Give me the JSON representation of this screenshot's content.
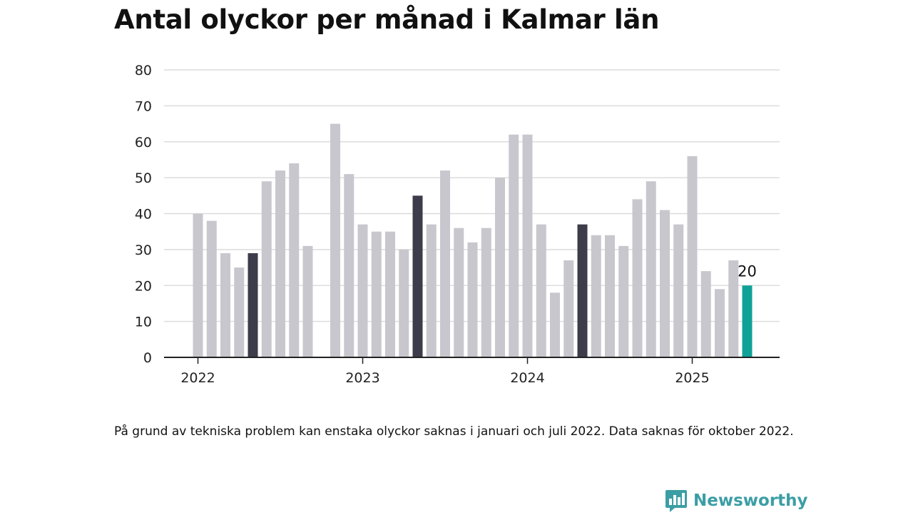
{
  "chart_data": {
    "type": "bar",
    "title": "Antal olyckor per månad i Kalmar län",
    "xlabel": "",
    "ylabel": "",
    "ylim": [
      0,
      80
    ],
    "yticks": [
      0,
      10,
      20,
      30,
      40,
      50,
      60,
      70,
      80
    ],
    "xticks": [
      "2022",
      "2023",
      "2024",
      "2025"
    ],
    "grid": true,
    "legend": "none",
    "colors": {
      "default": "#c8c7ce",
      "highlight": "#3d3c4a",
      "latest": "#0fa197",
      "grid": "#dcdcdc",
      "axis": "#222222"
    },
    "categories": [
      "2022-01",
      "2022-02",
      "2022-03",
      "2022-04",
      "2022-05",
      "2022-06",
      "2022-07",
      "2022-08",
      "2022-09",
      "2022-10",
      "2022-11",
      "2022-12",
      "2023-01",
      "2023-02",
      "2023-03",
      "2023-04",
      "2023-05",
      "2023-06",
      "2023-07",
      "2023-08",
      "2023-09",
      "2023-10",
      "2023-11",
      "2023-12",
      "2024-01",
      "2024-02",
      "2024-03",
      "2024-04",
      "2024-05",
      "2024-06",
      "2024-07",
      "2024-08",
      "2024-09",
      "2024-10",
      "2024-11",
      "2024-12",
      "2025-01",
      "2025-02",
      "2025-03",
      "2025-04",
      "2025-05"
    ],
    "values": [
      40,
      38,
      29,
      25,
      29,
      49,
      52,
      54,
      31,
      null,
      65,
      51,
      37,
      35,
      35,
      30,
      45,
      37,
      52,
      36,
      32,
      36,
      50,
      62,
      62,
      37,
      18,
      27,
      37,
      34,
      34,
      31,
      44,
      49,
      41,
      37,
      56,
      24,
      19,
      27,
      20
    ],
    "highlighted": [
      "2022-05",
      "2023-05",
      "2024-05"
    ],
    "latest_label": "20"
  },
  "footnote": "På grund av tekniska problem kan enstaka olyckor saknas i januari och juli 2022. Data saknas för oktober 2022.",
  "brand": {
    "name": "Newsworthy",
    "icon": "newsworthy-logo-icon",
    "color": "#3b9ea5"
  }
}
